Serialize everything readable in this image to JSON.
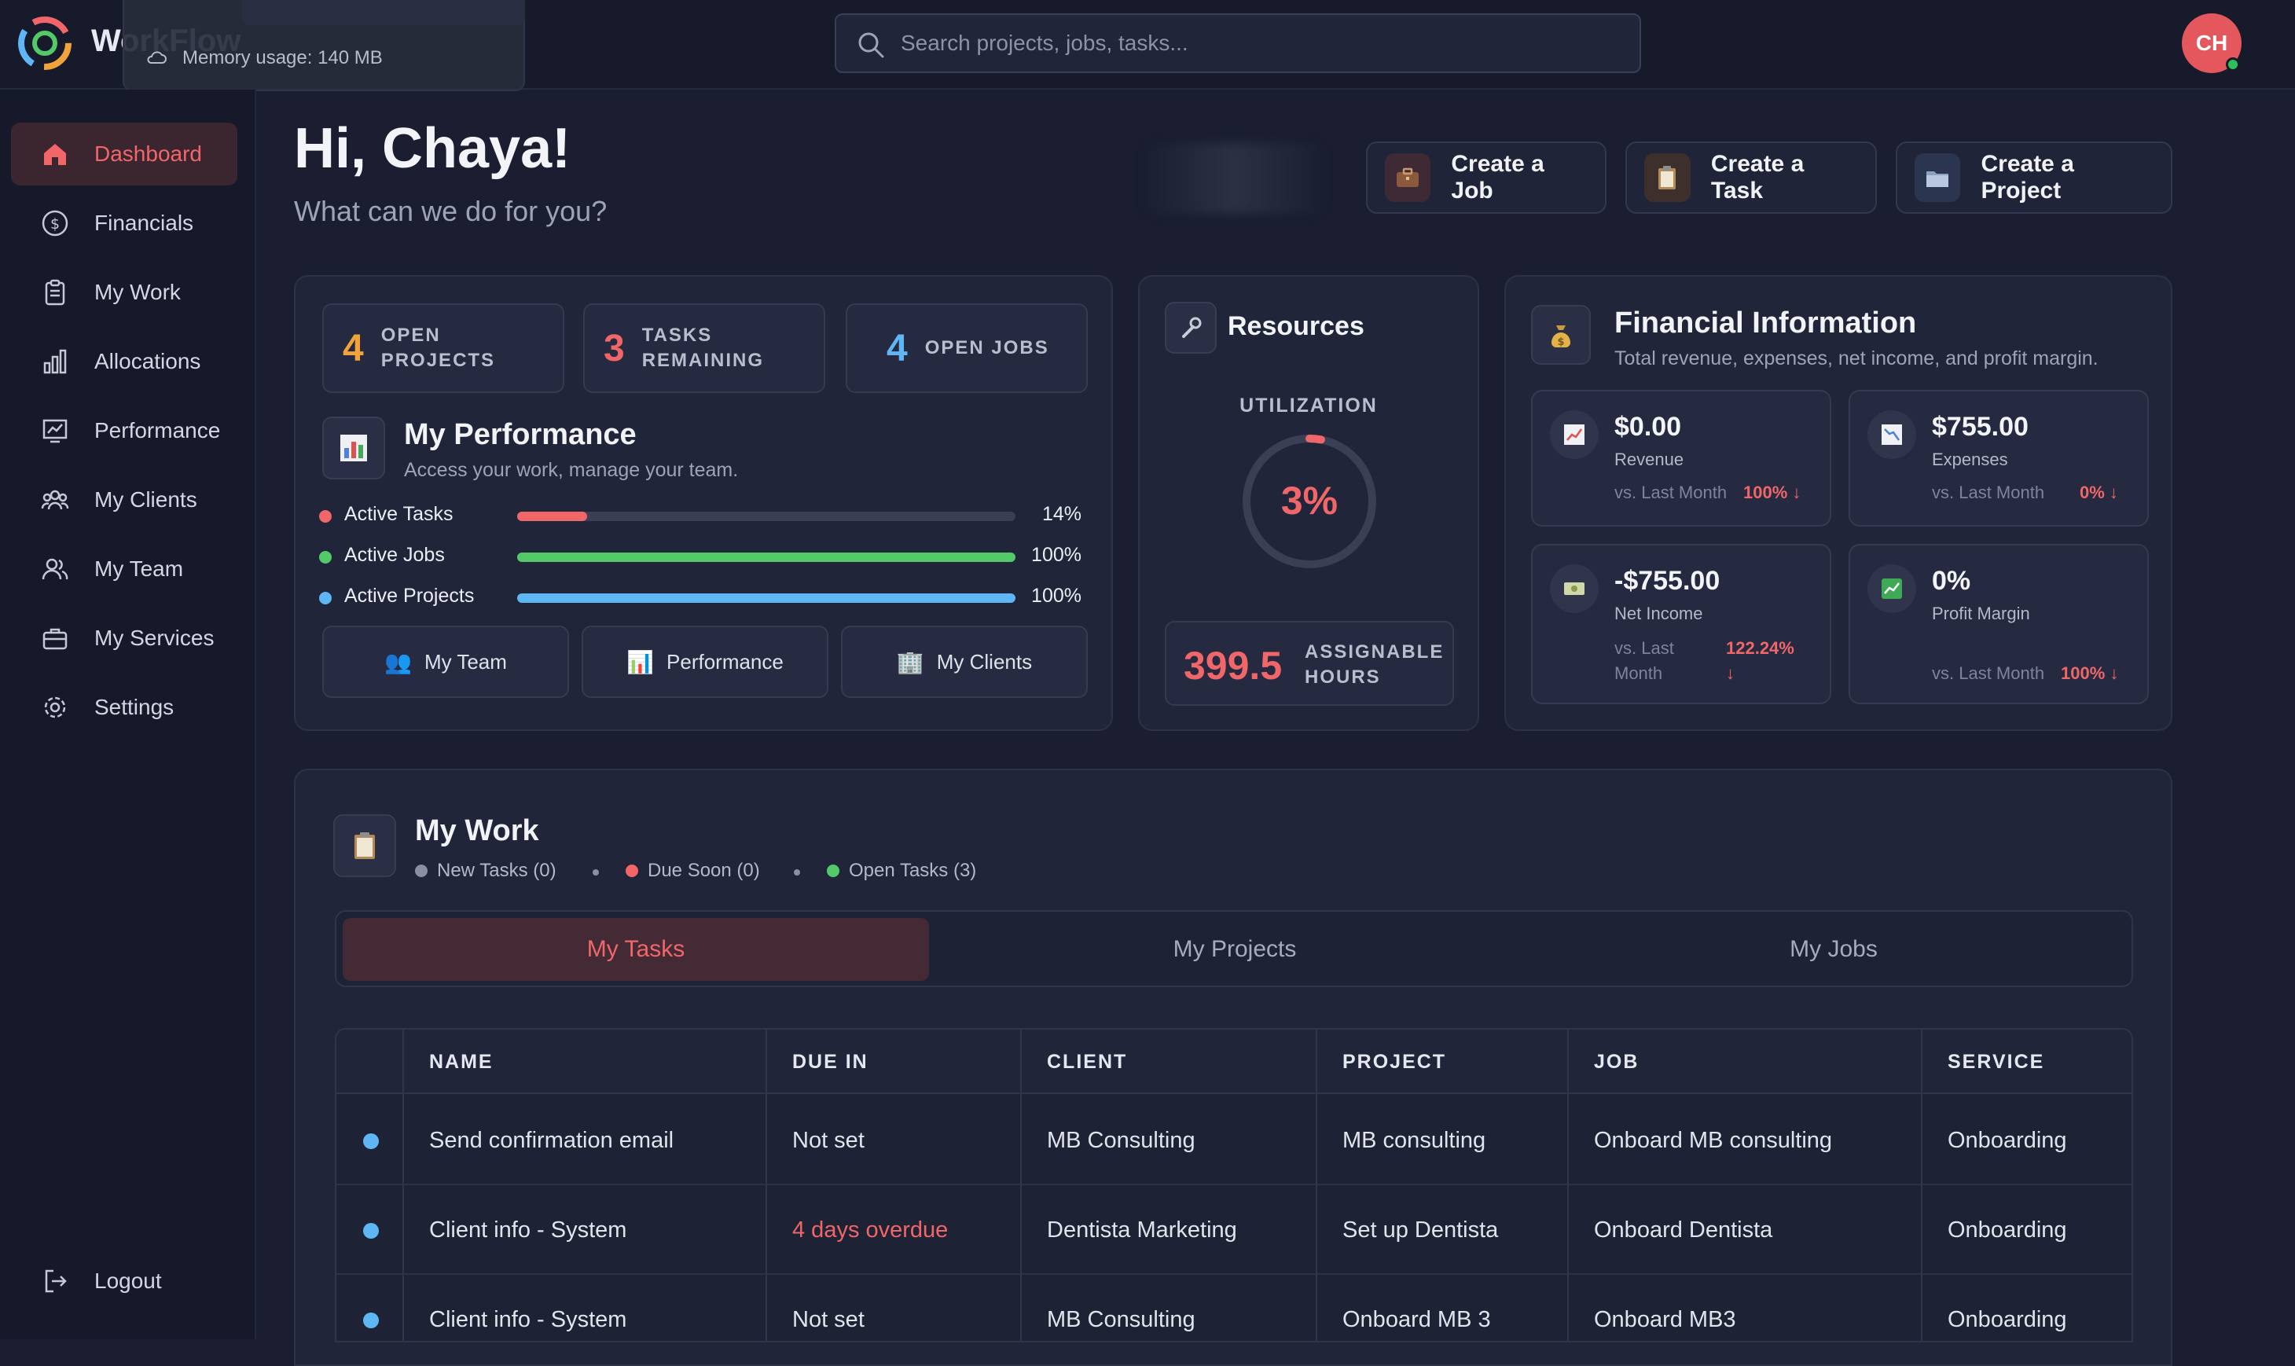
{
  "app": {
    "name": "WorkFlow",
    "memory_usage": "Memory usage: 140 MB"
  },
  "search": {
    "placeholder": "Search projects, jobs, tasks..."
  },
  "user": {
    "initials": "CH"
  },
  "sidebar": {
    "items": [
      {
        "label": "Dashboard",
        "icon": "home-icon",
        "active": true
      },
      {
        "label": "Financials",
        "icon": "dollar-icon"
      },
      {
        "label": "My Work",
        "icon": "clipboard-icon"
      },
      {
        "label": "Allocations",
        "icon": "bar-chart-icon"
      },
      {
        "label": "Performance",
        "icon": "trend-chart-icon"
      },
      {
        "label": "My Clients",
        "icon": "clients-icon"
      },
      {
        "label": "My Team",
        "icon": "team-icon"
      },
      {
        "label": "My Services",
        "icon": "briefcase-icon"
      },
      {
        "label": "Settings",
        "icon": "gear-icon"
      }
    ],
    "logout": "Logout"
  },
  "greeting": {
    "title": "Hi, Chaya!",
    "subtitle": "What can we do for you?"
  },
  "quick_actions": [
    {
      "label": "Create a Job",
      "icon": "briefcase-icon"
    },
    {
      "label": "Create a Task",
      "icon": "clipboard-icon"
    },
    {
      "label": "Create a Project",
      "icon": "folder-icon"
    }
  ],
  "stats": [
    {
      "value": "4",
      "label_1": "OPEN",
      "label_2": "PROJECTS",
      "color": "#f0a33a"
    },
    {
      "value": "3",
      "label_1": "TASKS",
      "label_2": "REMAINING",
      "color": "#f06669"
    },
    {
      "value": "4",
      "label_1": "OPEN JOBS",
      "label_2": "",
      "color": "#5eb6f4"
    }
  ],
  "performance": {
    "title": "My Performance",
    "subtitle": "Access your work, manage your team.",
    "rows": [
      {
        "label": "Active Tasks",
        "value_text": "14%",
        "fraction": 0.14,
        "color": "#f06669"
      },
      {
        "label": "Active Jobs",
        "value_text": "100%",
        "fraction": 1.0,
        "color": "#53c96a"
      },
      {
        "label": "Active Projects",
        "value_text": "100%",
        "fraction": 1.0,
        "color": "#5eb6f4"
      }
    ],
    "buttons": [
      {
        "label": "My Team",
        "icon": "team-icon"
      },
      {
        "label": "Performance",
        "icon": "bar-chart-icon"
      },
      {
        "label": "My Clients",
        "icon": "building-icon"
      }
    ]
  },
  "resources": {
    "title": "Resources",
    "utilization_label": "UTILIZATION",
    "utilization_text": "3%",
    "utilization_fraction": 0.03,
    "hours_value": "399.5",
    "hours_label_1": "ASSIGNABLE",
    "hours_label_2": "HOURS"
  },
  "financial": {
    "title": "Financial Information",
    "subtitle": "Total revenue, expenses, net income, and profit margin.",
    "boxes": [
      {
        "value": "$0.00",
        "label": "Revenue",
        "compare": "vs. Last Month",
        "change": "100% ↓",
        "icon": "chart-up-icon"
      },
      {
        "value": "$755.00",
        "label": "Expenses",
        "compare": "vs. Last Month",
        "change": "0% ↓",
        "icon": "chart-down-icon"
      },
      {
        "value": "-$755.00",
        "label": "Net Income",
        "compare_1": "vs. Last",
        "compare_2": "Month",
        "change_1": "122.24%",
        "change_2": "↓",
        "icon": "money-icon"
      },
      {
        "value": "0%",
        "label": "Profit Margin",
        "compare": "vs. Last Month",
        "change": "100% ↓",
        "icon": "growth-icon"
      }
    ]
  },
  "my_work": {
    "title": "My Work",
    "legend": [
      {
        "label": "New Tasks (0)",
        "color": "#8a8fa3"
      },
      {
        "label": "Due Soon (0)",
        "color": "#f06669"
      },
      {
        "label": "Open Tasks (3)",
        "color": "#53c96a"
      }
    ],
    "tabs": [
      "My Tasks",
      "My Projects",
      "My Jobs"
    ],
    "columns": [
      "NAME",
      "DUE IN",
      "CLIENT",
      "PROJECT",
      "JOB",
      "SERVICE"
    ],
    "rows": [
      {
        "name": "Send confirmation email",
        "due": "Not set",
        "due_overdue": false,
        "client": "MB Consulting",
        "project": "MB consulting",
        "job": "Onboard MB consulting",
        "service": "Onboarding"
      },
      {
        "name": "Client info - System",
        "due": "4 days overdue",
        "due_overdue": true,
        "client": "Dentista Marketing",
        "project": "Set up Dentista",
        "job": "Onboard Dentista",
        "service": "Onboarding"
      },
      {
        "name": "Client info - System",
        "due": "Not set",
        "due_overdue": false,
        "client": "MB Consulting",
        "project": "Onboard MB 3",
        "job": "Onboard MB3",
        "service": "Onboarding"
      }
    ]
  }
}
